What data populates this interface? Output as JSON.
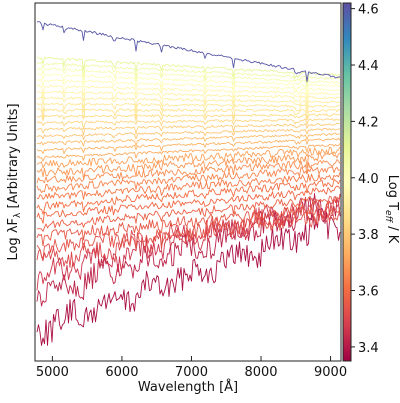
{
  "chart_data": {
    "type": "line",
    "title": "",
    "xlabel": "Wavelength [Å]",
    "ylabel": "Log λF",
    "ylabel_subscript": "λ",
    "ylabel_units": "[Arbitrary Units]",
    "xlim": [
      4750,
      9150
    ],
    "x_ticks": [
      5000,
      6000,
      7000,
      8000,
      9000
    ],
    "y_ticks_shown": false,
    "grid": false,
    "colorbar": {
      "label_prefix": "Log T",
      "label_subscript": "eff",
      "label_suffix": " / K",
      "range": [
        3.35,
        4.62
      ],
      "ticks": [
        "3.4",
        "3.6",
        "3.8",
        "4.0",
        "4.2",
        "4.4",
        "4.6"
      ],
      "colormap": "Spectral",
      "position": "right"
    },
    "series_count": 32,
    "series_note_logTeff": [
      3.38,
      3.42,
      3.46,
      3.5,
      3.53,
      3.55,
      3.57,
      3.59,
      3.61,
      3.63,
      3.65,
      3.67,
      3.69,
      3.71,
      3.73,
      3.75,
      3.77,
      3.79,
      3.81,
      3.83,
      3.85,
      3.87,
      3.89,
      3.91,
      3.93,
      3.95,
      3.97,
      3.99,
      4.02,
      4.05,
      4.1,
      4.6
    ]
  }
}
